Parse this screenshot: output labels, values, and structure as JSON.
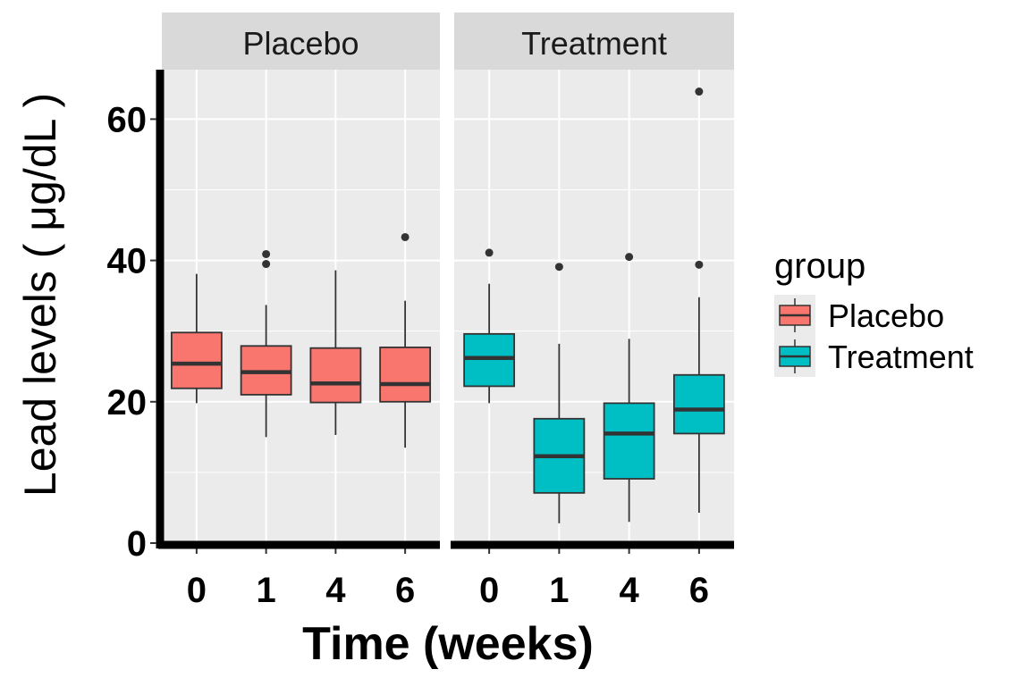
{
  "chart_data": {
    "type": "boxplot",
    "facet_by": "group",
    "xlabel": "Time (weeks)",
    "ylabel": "Lead levels ( μg/dL )",
    "ylim": [
      0,
      67
    ],
    "yticks": [
      0,
      20,
      40,
      60
    ],
    "categories": [
      "0",
      "1",
      "4",
      "6"
    ],
    "grid": true,
    "legend": {
      "title": "group",
      "position": "right",
      "entries": [
        "Placebo",
        "Treatment"
      ]
    },
    "colors": {
      "Placebo": "#F8766D",
      "Treatment": "#00BFC4"
    },
    "panels": [
      {
        "strip": "Placebo",
        "series_name": "Placebo",
        "boxes": [
          {
            "x": "0",
            "min": 19.8,
            "q1": 21.9,
            "median": 25.4,
            "q3": 29.8,
            "max": 38.1,
            "outliers": []
          },
          {
            "x": "1",
            "min": 15.0,
            "q1": 21.0,
            "median": 24.2,
            "q3": 27.9,
            "max": 33.7,
            "outliers": [
              39.5,
              40.9
            ]
          },
          {
            "x": "4",
            "min": 15.3,
            "q1": 19.9,
            "median": 22.6,
            "q3": 27.6,
            "max": 38.6,
            "outliers": []
          },
          {
            "x": "6",
            "min": 13.5,
            "q1": 20.0,
            "median": 22.5,
            "q3": 27.7,
            "max": 34.3,
            "outliers": [
              43.3
            ]
          }
        ]
      },
      {
        "strip": "Treatment",
        "series_name": "Treatment",
        "boxes": [
          {
            "x": "0",
            "min": 19.8,
            "q1": 22.2,
            "median": 26.2,
            "q3": 29.6,
            "max": 36.7,
            "outliers": [
              41.1
            ]
          },
          {
            "x": "1",
            "min": 2.8,
            "q1": 7.1,
            "median": 12.3,
            "q3": 17.6,
            "max": 28.2,
            "outliers": [
              39.1
            ]
          },
          {
            "x": "4",
            "min": 3.0,
            "q1": 9.1,
            "median": 15.5,
            "q3": 19.8,
            "max": 28.9,
            "outliers": [
              40.5
            ]
          },
          {
            "x": "6",
            "min": 4.3,
            "q1": 15.5,
            "median": 18.9,
            "q3": 23.8,
            "max": 34.8,
            "outliers": [
              39.4,
              63.9
            ]
          }
        ]
      }
    ]
  }
}
